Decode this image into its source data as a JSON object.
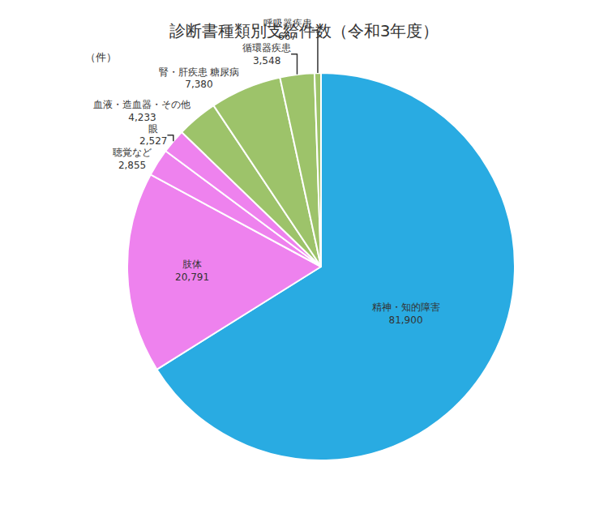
{
  "chart_data": {
    "type": "pie",
    "title": "診断書種類別支給件数（令和3年度）",
    "annotations": [
      "（件）"
    ],
    "categories": [
      "精神・知的障害",
      "肢体",
      "聴覚など",
      "眼",
      "血液・造血器・その他",
      "腎・肝疾患 糖尿病",
      "循環器疾患",
      "呼吸器疾患"
    ],
    "values": [
      81900,
      20791,
      2855,
      2527,
      4233,
      7380,
      3548,
      667
    ],
    "value_labels": [
      "81,900",
      "20,791",
      "2,855",
      "2,527",
      "4,233",
      "7,380",
      "3,548",
      "667"
    ],
    "colors": [
      "#29ABE2",
      "#EE82EE",
      "#EE82EE",
      "#EE82EE",
      "#9DC36A",
      "#9DC36A",
      "#9DC36A",
      "#9DC36A"
    ],
    "data_labels": true,
    "legend": false
  }
}
